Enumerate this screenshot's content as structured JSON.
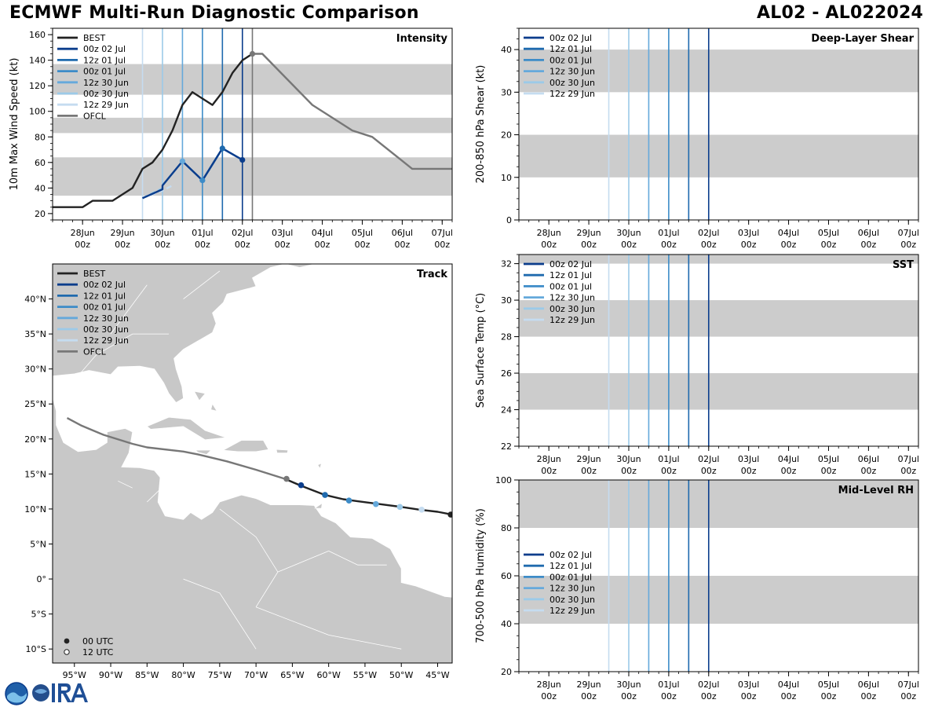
{
  "header": {
    "title": "ECMWF Multi-Run Diagnostic Comparison",
    "storm_id": "AL02 - AL022024"
  },
  "colors": {
    "BEST": "#222222",
    "OFCL": "#777777",
    "00z 02 Jul": "#0b3d8c",
    "12z 01 Jul": "#1f6aae",
    "00z 01 Jul": "#3d8cc8",
    "12z 30 Jun": "#65a9db",
    "00z 30 Jun": "#9ccae8",
    "12z 29 Jun": "#c5dcf0",
    "band": "#cccccc",
    "land": "#c8c8c8"
  },
  "time_axis": {
    "tick_top": [
      "28Jun",
      "29Jun",
      "30Jun",
      "01Jul",
      "02Jul",
      "03Jul",
      "04Jul",
      "05Jul",
      "06Jul",
      "07Jul"
    ],
    "tick_bottom": [
      "00z",
      "00z",
      "00z",
      "00z",
      "00z",
      "00z",
      "00z",
      "00z",
      "00z",
      "00z"
    ],
    "run_lines": [
      {
        "run": "12z 29 Jun",
        "t": 1.5
      },
      {
        "run": "00z 30 Jun",
        "t": 2.0
      },
      {
        "run": "12z 30 Jun",
        "t": 2.5
      },
      {
        "run": "00z 01 Jul",
        "t": 3.0
      },
      {
        "run": "12z 01 Jul",
        "t": 3.5
      },
      {
        "run": "00z 02 Jul",
        "t": 4.0
      }
    ]
  },
  "chart_data": [
    {
      "id": "intensity",
      "type": "line",
      "title": "Intensity",
      "ylabel": "10m Max Wind Speed (kt)",
      "xlim": [
        -0.75,
        9.25
      ],
      "ylim": [
        15,
        165
      ],
      "yticks": [
        20,
        40,
        60,
        80,
        100,
        120,
        140,
        160
      ],
      "bands": [
        [
          34,
          64
        ],
        [
          83,
          95
        ],
        [
          113,
          137
        ]
      ],
      "extra_vline": {
        "run": "OFCL",
        "t": 4.25
      },
      "legend": [
        "BEST",
        "00z 02 Jul",
        "12z 01 Jul",
        "00z 01 Jul",
        "12z 30 Jun",
        "00z 30 Jun",
        "12z 29 Jun",
        "OFCL"
      ],
      "series": [
        {
          "name": "BEST",
          "points": [
            [
              -0.75,
              25
            ],
            [
              0,
              25
            ],
            [
              0.25,
              30
            ],
            [
              0.75,
              30
            ],
            [
              1.25,
              40
            ],
            [
              1.5,
              55
            ],
            [
              1.75,
              60
            ],
            [
              2.0,
              70
            ],
            [
              2.25,
              85
            ],
            [
              2.5,
              105
            ],
            [
              2.75,
              115
            ],
            [
              3.25,
              105
            ],
            [
              3.5,
              115
            ],
            [
              3.75,
              130
            ],
            [
              4.0,
              140
            ],
            [
              4.25,
              145
            ]
          ]
        },
        {
          "name": "OFCL",
          "points": [
            [
              4.25,
              145
            ],
            [
              4.5,
              145
            ],
            [
              5.75,
              105
            ],
            [
              6.75,
              85
            ],
            [
              7.25,
              80
            ],
            [
              8.25,
              55
            ],
            [
              9.25,
              55
            ]
          ]
        },
        {
          "name": "12z 29 Jun",
          "points": [
            [
              1.5,
              32
            ],
            [
              2.0,
              38
            ],
            [
              2.25,
              42
            ]
          ],
          "dash": true
        },
        {
          "name": "00z 30 Jun",
          "points": [
            [
              1.5,
              32
            ],
            [
              2.0,
              40
            ]
          ],
          "dash": true
        },
        {
          "name": "12z 30 Jun",
          "points": [
            [
              2.0,
              42
            ],
            [
              2.5,
              61
            ]
          ]
        },
        {
          "name": "00z 01 Jul",
          "points": [
            [
              2.5,
              61
            ],
            [
              3.0,
              46
            ],
            [
              3.5,
              71
            ]
          ]
        },
        {
          "name": "12z 01 Jul",
          "points": [
            [
              3.0,
              46
            ],
            [
              3.5,
              71
            ],
            [
              4.0,
              62
            ]
          ]
        },
        {
          "name": "00z 02 Jul",
          "points": [
            [
              1.5,
              32
            ],
            [
              2.0,
              39
            ],
            [
              2.0,
              42
            ],
            [
              2.5,
              61
            ],
            [
              3.0,
              46
            ],
            [
              3.5,
              71
            ],
            [
              4.0,
              62
            ]
          ]
        }
      ],
      "markers": [
        {
          "name": "12z 30 Jun",
          "t": 2.5,
          "v": 61
        },
        {
          "name": "00z 01 Jul",
          "t": 3.0,
          "v": 46
        },
        {
          "name": "12z 01 Jul",
          "t": 3.5,
          "v": 71
        },
        {
          "name": "00z 02 Jul",
          "t": 4.0,
          "v": 62
        },
        {
          "name": "OFCL",
          "t": 4.25,
          "v": 145
        }
      ]
    },
    {
      "id": "track",
      "type": "line",
      "title": "Track",
      "xlim": [
        -98,
        -43
      ],
      "ylim": [
        -12,
        45
      ],
      "xticks": [
        -95,
        -90,
        -85,
        -80,
        -75,
        -70,
        -65,
        -60,
        -55,
        -50,
        -45
      ],
      "xticklabels": [
        "95°W",
        "90°W",
        "85°W",
        "80°W",
        "75°W",
        "70°W",
        "65°W",
        "60°W",
        "55°W",
        "50°W",
        "45°W"
      ],
      "yticks": [
        -10,
        -5,
        0,
        5,
        10,
        15,
        20,
        25,
        30,
        35,
        40
      ],
      "yticklabels": [
        "10°S",
        "5°S",
        "0°",
        "5°N",
        "10°N",
        "15°N",
        "20°N",
        "25°N",
        "30°N",
        "35°N",
        "40°N"
      ],
      "legend": [
        "BEST",
        "00z 02 Jul",
        "12z 01 Jul",
        "00z 01 Jul",
        "12z 30 Jun",
        "00z 30 Jun",
        "12z 29 Jun",
        "OFCL"
      ],
      "marker_legend": [
        "00 UTC",
        "12 UTC"
      ],
      "series": [
        {
          "name": "BEST",
          "points": [
            [
              -43,
              9.2
            ],
            [
              -45,
              9.6
            ],
            [
              -47.5,
              9.9
            ],
            [
              -50,
              10.3
            ],
            [
              -53,
              10.7
            ],
            [
              -56,
              11.1
            ],
            [
              -58,
              11.4
            ],
            [
              -60.5,
              12.0
            ],
            [
              -62.5,
              12.8
            ],
            [
              -64,
              13.4
            ],
            [
              -66,
              14.3
            ]
          ]
        },
        {
          "name": "OFCL",
          "points": [
            [
              -66,
              14.3
            ],
            [
              -70,
              15.6
            ],
            [
              -74,
              16.8
            ],
            [
              -78,
              17.8
            ],
            [
              -80,
              18.2
            ],
            [
              -85,
              18.8
            ],
            [
              -87,
              19.3
            ],
            [
              -91,
              20.6
            ],
            [
              -94,
              21.9
            ],
            [
              -96,
              23.0
            ]
          ]
        }
      ],
      "markers": [
        {
          "name": "BEST",
          "lon": -43.2,
          "lat": 9.2
        },
        {
          "name": "12z 29 Jun",
          "lon": -47.2,
          "lat": 9.9
        },
        {
          "name": "00z 30 Jun",
          "lon": -50.2,
          "lat": 10.3
        },
        {
          "name": "12z 30 Jun",
          "lon": -53.5,
          "lat": 10.7
        },
        {
          "name": "00z 01 Jul",
          "lon": -57.2,
          "lat": 11.2
        },
        {
          "name": "12z 01 Jul",
          "lon": -60.5,
          "lat": 12.0
        },
        {
          "name": "00z 02 Jul",
          "lon": -63.8,
          "lat": 13.4
        },
        {
          "name": "OFCL",
          "lon": -65.8,
          "lat": 14.3
        }
      ]
    },
    {
      "id": "shear",
      "type": "line",
      "title": "Deep-Layer Shear",
      "ylabel": "200-850 hPa Shear (kt)",
      "xlim": [
        -0.75,
        9.25
      ],
      "ylim": [
        0,
        45
      ],
      "yticks": [
        0,
        10,
        20,
        30,
        40
      ],
      "bands": [
        [
          10,
          20
        ],
        [
          30,
          40
        ]
      ],
      "legend": [
        "00z 02 Jul",
        "12z 01 Jul",
        "00z 01 Jul",
        "12z 30 Jun",
        "00z 30 Jun",
        "12z 29 Jun"
      ],
      "legend_pos": "top-left"
    },
    {
      "id": "sst",
      "type": "line",
      "title": "SST",
      "ylabel": "Sea Surface Temp (°C)",
      "xlim": [
        -0.75,
        9.25
      ],
      "ylim": [
        22,
        32.5
      ],
      "yticks": [
        22,
        24,
        26,
        28,
        30,
        32
      ],
      "bands": [
        [
          24,
          26
        ],
        [
          28,
          30
        ],
        [
          32,
          32.5
        ]
      ],
      "legend": [
        "00z 02 Jul",
        "12z 01 Jul",
        "00z 01 Jul",
        "12z 30 Jun",
        "00z 30 Jun",
        "12z 29 Jun"
      ],
      "legend_pos": "top-left"
    },
    {
      "id": "rh",
      "type": "line",
      "title": "Mid-Level RH",
      "ylabel": "700-500 hPa Humidity (%)",
      "xlim": [
        -0.75,
        9.25
      ],
      "ylim": [
        20,
        100
      ],
      "yticks": [
        20,
        40,
        60,
        80,
        100
      ],
      "bands": [
        [
          40,
          60
        ],
        [
          80,
          100
        ]
      ],
      "legend": [
        "00z 02 Jul",
        "12z 01 Jul",
        "00z 01 Jul",
        "12z 30 Jun",
        "00z 30 Jun",
        "12z 29 Jun"
      ],
      "legend_pos": "bottom-left"
    }
  ]
}
